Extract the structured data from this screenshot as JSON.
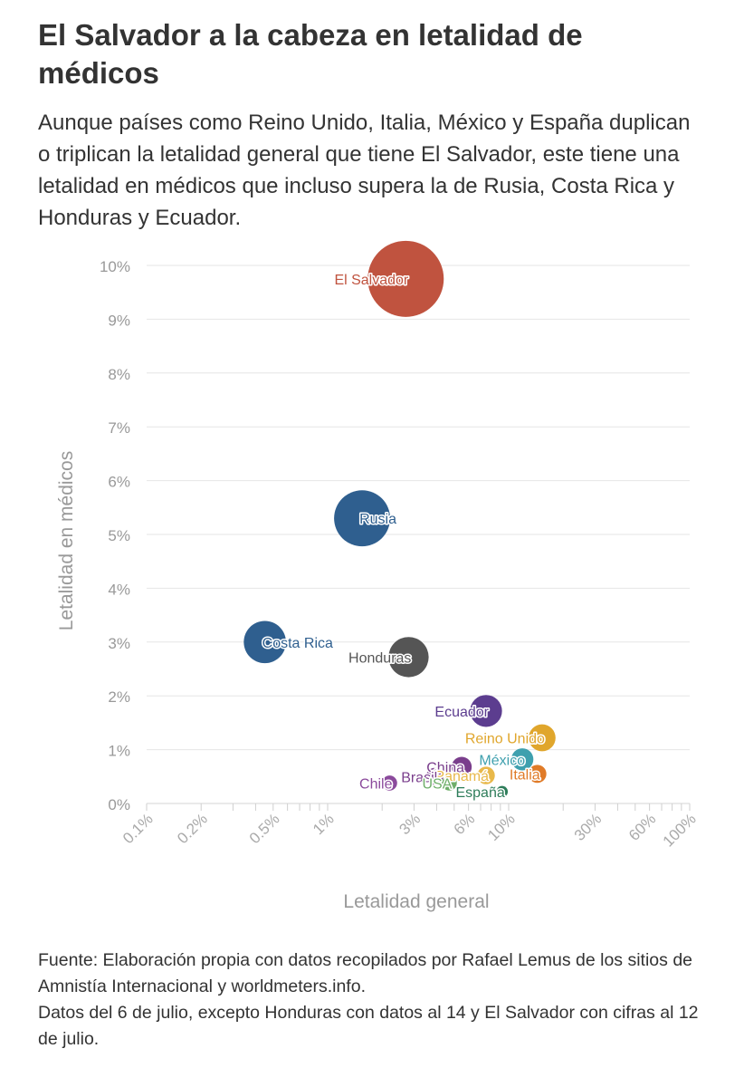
{
  "title": "El Salvador a la cabeza en letalidad de médicos",
  "subtitle": "Aunque países como Reino Unido, Italia, México y España duplican o triplican la letalidad general que tiene El Salvador, este tiene una letalidad en médicos que incluso supera la de Rusia, Costa Rica y Honduras y Ecuador.",
  "source": {
    "line1": "Fuente: Elaboración propia con datos recopilados por Rafael Lemus de los sitios de Amnistía Internacional y worldmeters.info.",
    "line2": "Datos del 6 de julio, excepto Honduras con datos al 14 y El Salvador con cifras al 12 de julio."
  },
  "chart_data": {
    "type": "scatter",
    "title": "",
    "xlabel": "Letalidad general",
    "ylabel": "Letalidad en médicos",
    "x_scale": "log",
    "xlim": [
      0.1,
      100
    ],
    "ylim": [
      0,
      10
    ],
    "x_ticks": [
      0.1,
      0.2,
      0.5,
      1,
      3,
      6,
      10,
      30,
      60,
      100
    ],
    "x_tick_labels": [
      "0.1%",
      "0.2%",
      "0.5%",
      "1%",
      "3%",
      "6%",
      "10%",
      "30%",
      "60%",
      "100%"
    ],
    "y_ticks": [
      0,
      1,
      2,
      3,
      4,
      5,
      6,
      7,
      8,
      9,
      10
    ],
    "y_tick_labels": [
      "0%",
      "1%",
      "2%",
      "3%",
      "4%",
      "5%",
      "6%",
      "7%",
      "8%",
      "9%",
      "10%"
    ],
    "grid": "horizontal",
    "points": [
      {
        "name": "El Salvador",
        "x": 2.7,
        "y": 9.75,
        "size": 9.75,
        "color": "#c0533f",
        "label_side": "left"
      },
      {
        "name": "Rusia",
        "x": 1.55,
        "y": 5.3,
        "size": 5.3,
        "color": "#2f5f8f",
        "label_side": "right"
      },
      {
        "name": "Costa Rica",
        "x": 0.45,
        "y": 3.0,
        "size": 3.0,
        "color": "#2f5f8f",
        "label_side": "right"
      },
      {
        "name": "Honduras",
        "x": 2.8,
        "y": 2.72,
        "size": 2.72,
        "color": "#555555",
        "label_side": "left"
      },
      {
        "name": "Ecuador",
        "x": 7.5,
        "y": 1.72,
        "size": 1.72,
        "color": "#5c3d8f",
        "label_side": "left"
      },
      {
        "name": "Reino Unido",
        "x": 15.3,
        "y": 1.22,
        "size": 1.22,
        "color": "#e0a62c",
        "label_side": "left"
      },
      {
        "name": "México",
        "x": 11.9,
        "y": 0.82,
        "size": 0.82,
        "color": "#3fa0ae",
        "label_side": "left"
      },
      {
        "name": "Italia",
        "x": 14.4,
        "y": 0.55,
        "size": 0.55,
        "color": "#e07b28",
        "label_side": "left"
      },
      {
        "name": "China",
        "x": 5.5,
        "y": 0.68,
        "size": 0.68,
        "color": "#7a3e8c",
        "label_side": "left"
      },
      {
        "name": "Panamá",
        "x": 7.5,
        "y": 0.52,
        "size": 0.52,
        "color": "#e8b84a",
        "label_side": "left"
      },
      {
        "name": "Brasil",
        "x": 3.9,
        "y": 0.5,
        "size": 0.5,
        "color": "#7a3e8c",
        "label_side": "left"
      },
      {
        "name": "USA",
        "x": 4.7,
        "y": 0.38,
        "size": 0.38,
        "color": "#6fae6a",
        "label_side": "left"
      },
      {
        "name": "Chile",
        "x": 2.2,
        "y": 0.38,
        "size": 0.38,
        "color": "#8b4a9c",
        "label_side": "left"
      },
      {
        "name": "España",
        "x": 9.2,
        "y": 0.22,
        "size": 0.22,
        "color": "#2e7d5a",
        "label_side": "left"
      }
    ]
  }
}
